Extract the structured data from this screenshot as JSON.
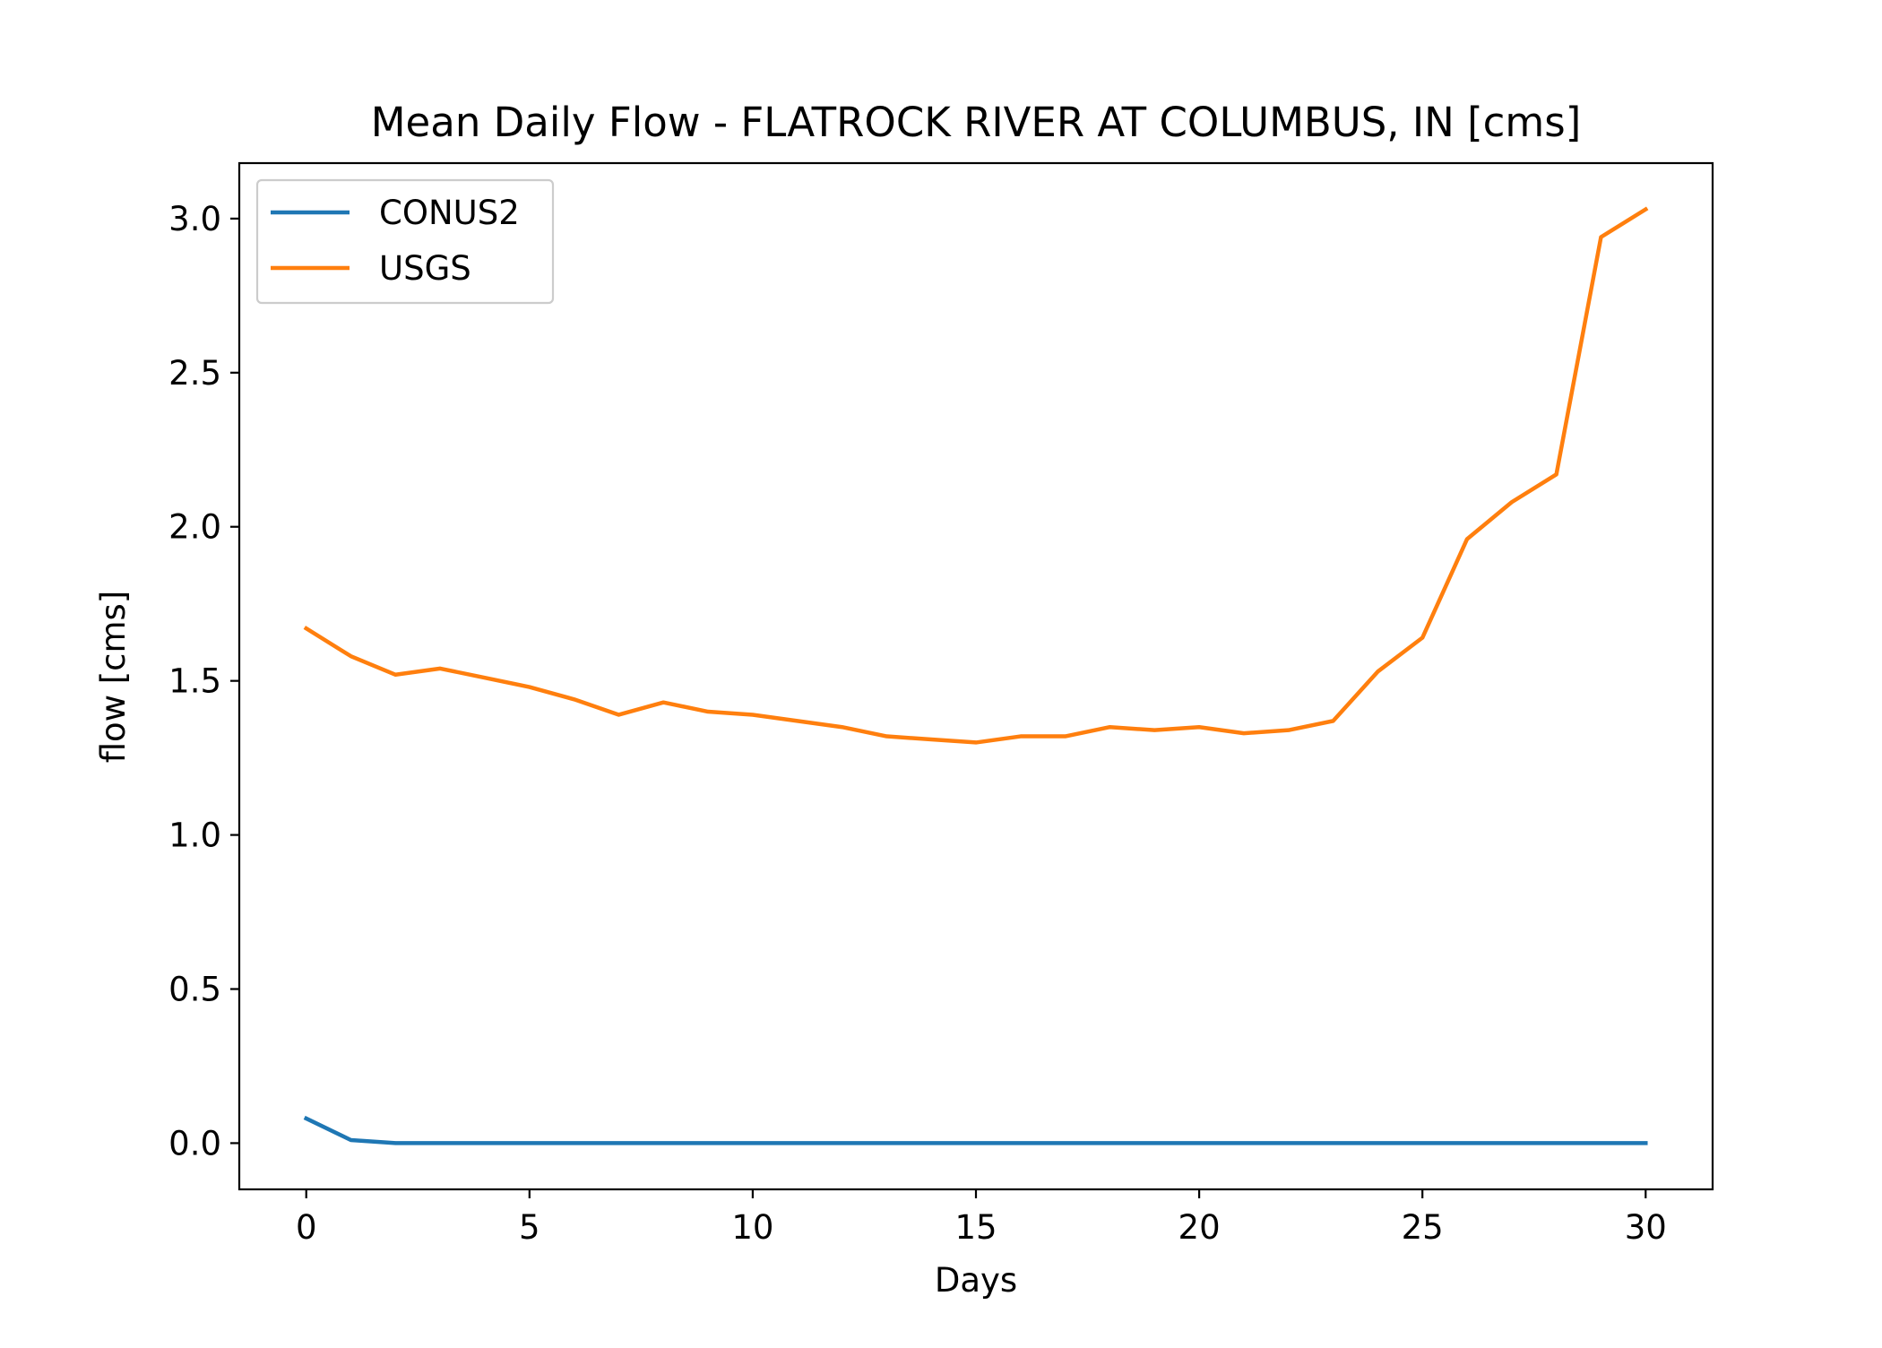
{
  "chart_data": {
    "type": "line",
    "title": "Mean Daily Flow - FLATROCK RIVER AT COLUMBUS, IN [cms]",
    "xlabel": "Days",
    "ylabel": "flow [cms]",
    "xlim": [
      -1.5,
      31.5
    ],
    "ylim": [
      -0.15,
      3.18
    ],
    "xticks": [
      0,
      5,
      10,
      15,
      20,
      25,
      30
    ],
    "xtick_labels": [
      "0",
      "5",
      "10",
      "15",
      "20",
      "25",
      "30"
    ],
    "yticks": [
      0.0,
      0.5,
      1.0,
      1.5,
      2.0,
      2.5,
      3.0
    ],
    "ytick_labels": [
      "0.0",
      "0.5",
      "1.0",
      "1.5",
      "2.0",
      "2.5",
      "3.0"
    ],
    "grid": false,
    "legend_position": "top-left",
    "x": [
      0,
      1,
      2,
      3,
      4,
      5,
      6,
      7,
      8,
      9,
      10,
      11,
      12,
      13,
      14,
      15,
      16,
      17,
      18,
      19,
      20,
      21,
      22,
      23,
      24,
      25,
      26,
      27,
      28,
      29,
      30
    ],
    "series": [
      {
        "name": "CONUS2",
        "color": "#1f77b4",
        "values": [
          0.08,
          0.01,
          0.0,
          0.0,
          0.0,
          0.0,
          0.0,
          0.0,
          0.0,
          0.0,
          0.0,
          0.0,
          0.0,
          0.0,
          0.0,
          0.0,
          0.0,
          0.0,
          0.0,
          0.0,
          0.0,
          0.0,
          0.0,
          0.0,
          0.0,
          0.0,
          0.0,
          0.0,
          0.0,
          0.0,
          0.0
        ]
      },
      {
        "name": "USGS",
        "color": "#ff7f0e",
        "values": [
          1.67,
          1.58,
          1.52,
          1.54,
          1.51,
          1.48,
          1.44,
          1.39,
          1.43,
          1.4,
          1.39,
          1.37,
          1.35,
          1.32,
          1.31,
          1.3,
          1.32,
          1.32,
          1.35,
          1.34,
          1.35,
          1.33,
          1.34,
          1.37,
          1.53,
          1.64,
          1.96,
          2.08,
          2.17,
          2.94,
          3.03
        ]
      }
    ]
  }
}
